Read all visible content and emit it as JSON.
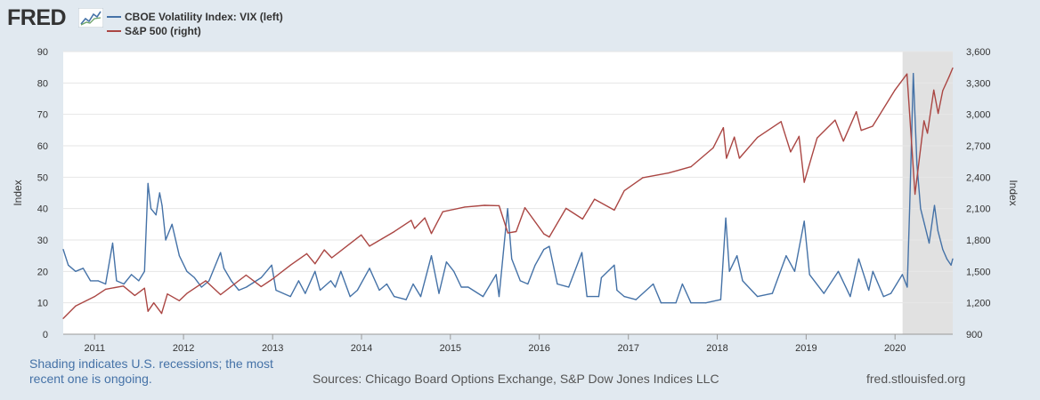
{
  "header": {
    "logo_text": "FRED"
  },
  "footer": {
    "shading_note_line1": "Shading indicates U.S. recessions; the most",
    "shading_note_line2": "recent one is ongoing.",
    "sources": "Sources: Chicago Board Options Exchange, S&P Dow Jones Indices LLC",
    "site": "fred.stlouisfed.org"
  },
  "chart_data": {
    "type": "line",
    "ylabel": "Index",
    "y2label": "Index",
    "ylim": [
      0,
      90
    ],
    "y2lim": [
      900,
      3600
    ],
    "yticks": [
      0,
      10,
      20,
      30,
      40,
      50,
      60,
      70,
      80,
      90
    ],
    "y2ticks": [
      "900",
      "1,200",
      "1,500",
      "1,800",
      "2,100",
      "2,400",
      "2,700",
      "3,000",
      "3,300",
      "3,600"
    ],
    "y2tick_values": [
      900,
      1200,
      1500,
      1800,
      2100,
      2400,
      2700,
      3000,
      3300,
      3600
    ],
    "xlim": [
      "2010-08-25",
      "2020-08-25"
    ],
    "xticks": [
      "2011",
      "2012",
      "2013",
      "2014",
      "2015",
      "2016",
      "2017",
      "2018",
      "2019",
      "2020"
    ],
    "recession": {
      "start": "2020-02-01",
      "end": "2020-08-25"
    },
    "grid": true,
    "series": [
      {
        "name": "CBOE Volatility Index: VIX (left)",
        "axis": "left",
        "color": "#4572a7",
        "points": [
          [
            "2010-08-25",
            27
          ],
          [
            "2010-09-15",
            22
          ],
          [
            "2010-10-15",
            20
          ],
          [
            "2010-11-15",
            21
          ],
          [
            "2010-12-15",
            17
          ],
          [
            "2011-01-15",
            17
          ],
          [
            "2011-02-15",
            16
          ],
          [
            "2011-03-16",
            29
          ],
          [
            "2011-04-01",
            17
          ],
          [
            "2011-05-01",
            16
          ],
          [
            "2011-06-01",
            19
          ],
          [
            "2011-07-01",
            17
          ],
          [
            "2011-07-25",
            20
          ],
          [
            "2011-08-08",
            48
          ],
          [
            "2011-08-20",
            40
          ],
          [
            "2011-09-10",
            38
          ],
          [
            "2011-09-25",
            45
          ],
          [
            "2011-10-05",
            41
          ],
          [
            "2011-10-20",
            30
          ],
          [
            "2011-11-15",
            35
          ],
          [
            "2011-12-15",
            25
          ],
          [
            "2012-01-15",
            20
          ],
          [
            "2012-02-15",
            18
          ],
          [
            "2012-03-15",
            15
          ],
          [
            "2012-04-15",
            17
          ],
          [
            "2012-06-01",
            26
          ],
          [
            "2012-06-15",
            21
          ],
          [
            "2012-07-15",
            17
          ],
          [
            "2012-08-15",
            14
          ],
          [
            "2012-09-15",
            15
          ],
          [
            "2012-11-15",
            18
          ],
          [
            "2012-12-28",
            22
          ],
          [
            "2013-01-15",
            14
          ],
          [
            "2013-03-15",
            12
          ],
          [
            "2013-04-18",
            17
          ],
          [
            "2013-05-15",
            13
          ],
          [
            "2013-06-24",
            20
          ],
          [
            "2013-07-15",
            14
          ],
          [
            "2013-08-28",
            17
          ],
          [
            "2013-09-15",
            15
          ],
          [
            "2013-10-08",
            20
          ],
          [
            "2013-11-15",
            12
          ],
          [
            "2013-12-15",
            14
          ],
          [
            "2014-02-03",
            21
          ],
          [
            "2014-03-15",
            14
          ],
          [
            "2014-04-15",
            16
          ],
          [
            "2014-05-15",
            12
          ],
          [
            "2014-07-03",
            11
          ],
          [
            "2014-08-01",
            16
          ],
          [
            "2014-09-01",
            12
          ],
          [
            "2014-10-15",
            25
          ],
          [
            "2014-11-15",
            13
          ],
          [
            "2014-12-16",
            23
          ],
          [
            "2015-01-15",
            20
          ],
          [
            "2015-02-15",
            15
          ],
          [
            "2015-03-15",
            15
          ],
          [
            "2015-05-15",
            12
          ],
          [
            "2015-07-08",
            19
          ],
          [
            "2015-07-20",
            12
          ],
          [
            "2015-08-24",
            40
          ],
          [
            "2015-09-10",
            24
          ],
          [
            "2015-10-15",
            17
          ],
          [
            "2015-11-15",
            16
          ],
          [
            "2015-12-15",
            22
          ],
          [
            "2016-01-20",
            27
          ],
          [
            "2016-02-11",
            28
          ],
          [
            "2016-03-15",
            16
          ],
          [
            "2016-05-01",
            15
          ],
          [
            "2016-06-24",
            26
          ],
          [
            "2016-07-15",
            12
          ],
          [
            "2016-09-01",
            12
          ],
          [
            "2016-09-12",
            18
          ],
          [
            "2016-11-04",
            22
          ],
          [
            "2016-11-15",
            14
          ],
          [
            "2016-12-15",
            12
          ],
          [
            "2017-02-01",
            11
          ],
          [
            "2017-04-13",
            16
          ],
          [
            "2017-05-15",
            10
          ],
          [
            "2017-07-15",
            10
          ],
          [
            "2017-08-11",
            16
          ],
          [
            "2017-09-15",
            10
          ],
          [
            "2017-11-15",
            10
          ],
          [
            "2018-01-15",
            11
          ],
          [
            "2018-02-05",
            37
          ],
          [
            "2018-02-20",
            20
          ],
          [
            "2018-03-23",
            25
          ],
          [
            "2018-04-15",
            17
          ],
          [
            "2018-06-15",
            12
          ],
          [
            "2018-08-15",
            13
          ],
          [
            "2018-10-11",
            25
          ],
          [
            "2018-11-15",
            20
          ],
          [
            "2018-12-24",
            36
          ],
          [
            "2019-01-15",
            19
          ],
          [
            "2019-03-15",
            13
          ],
          [
            "2019-05-13",
            20
          ],
          [
            "2019-07-01",
            12
          ],
          [
            "2019-08-05",
            24
          ],
          [
            "2019-09-15",
            14
          ],
          [
            "2019-10-02",
            20
          ],
          [
            "2019-11-15",
            12
          ],
          [
            "2019-12-15",
            13
          ],
          [
            "2020-01-31",
            19
          ],
          [
            "2020-02-20",
            15
          ],
          [
            "2020-03-01",
            40
          ],
          [
            "2020-03-16",
            83
          ],
          [
            "2020-03-31",
            54
          ],
          [
            "2020-04-15",
            40
          ],
          [
            "2020-05-01",
            35
          ],
          [
            "2020-05-20",
            29
          ],
          [
            "2020-06-11",
            41
          ],
          [
            "2020-06-25",
            33
          ],
          [
            "2020-07-15",
            27
          ],
          [
            "2020-08-01",
            24
          ],
          [
            "2020-08-18",
            22
          ],
          [
            "2020-08-25",
            24
          ]
        ]
      },
      {
        "name": "S&P 500 (right)",
        "axis": "right",
        "color": "#aa4643",
        "points": [
          [
            "2010-08-25",
            1050
          ],
          [
            "2010-10-15",
            1170
          ],
          [
            "2010-12-31",
            1258
          ],
          [
            "2011-02-15",
            1330
          ],
          [
            "2011-04-29",
            1360
          ],
          [
            "2011-06-15",
            1270
          ],
          [
            "2011-07-25",
            1340
          ],
          [
            "2011-08-08",
            1119
          ],
          [
            "2011-09-01",
            1200
          ],
          [
            "2011-10-03",
            1099
          ],
          [
            "2011-10-27",
            1285
          ],
          [
            "2011-12-15",
            1220
          ],
          [
            "2012-01-15",
            1290
          ],
          [
            "2012-04-01",
            1410
          ],
          [
            "2012-06-01",
            1278
          ],
          [
            "2012-09-14",
            1465
          ],
          [
            "2012-11-15",
            1355
          ],
          [
            "2012-12-31",
            1426
          ],
          [
            "2013-03-15",
            1560
          ],
          [
            "2013-05-21",
            1669
          ],
          [
            "2013-06-24",
            1573
          ],
          [
            "2013-08-01",
            1706
          ],
          [
            "2013-09-01",
            1630
          ],
          [
            "2013-12-31",
            1848
          ],
          [
            "2014-02-03",
            1741
          ],
          [
            "2014-05-15",
            1880
          ],
          [
            "2014-07-24",
            1988
          ],
          [
            "2014-08-07",
            1910
          ],
          [
            "2014-09-18",
            2011
          ],
          [
            "2014-10-15",
            1862
          ],
          [
            "2014-12-01",
            2070
          ],
          [
            "2015-03-01",
            2115
          ],
          [
            "2015-05-21",
            2131
          ],
          [
            "2015-07-20",
            2128
          ],
          [
            "2015-08-25",
            1867
          ],
          [
            "2015-09-28",
            1881
          ],
          [
            "2015-11-03",
            2109
          ],
          [
            "2016-01-20",
            1859
          ],
          [
            "2016-02-11",
            1829
          ],
          [
            "2016-04-20",
            2102
          ],
          [
            "2016-06-27",
            2000
          ],
          [
            "2016-08-15",
            2190
          ],
          [
            "2016-11-04",
            2085
          ],
          [
            "2016-12-15",
            2270
          ],
          [
            "2017-03-01",
            2395
          ],
          [
            "2017-06-15",
            2440
          ],
          [
            "2017-09-15",
            2500
          ],
          [
            "2017-12-15",
            2680
          ],
          [
            "2018-01-26",
            2873
          ],
          [
            "2018-02-08",
            2581
          ],
          [
            "2018-03-12",
            2783
          ],
          [
            "2018-04-02",
            2581
          ],
          [
            "2018-06-15",
            2780
          ],
          [
            "2018-09-20",
            2931
          ],
          [
            "2018-10-29",
            2641
          ],
          [
            "2018-12-03",
            2790
          ],
          [
            "2018-12-24",
            2351
          ],
          [
            "2019-02-15",
            2775
          ],
          [
            "2019-04-30",
            2945
          ],
          [
            "2019-06-03",
            2744
          ],
          [
            "2019-07-26",
            3025
          ],
          [
            "2019-08-15",
            2847
          ],
          [
            "2019-10-01",
            2887
          ],
          [
            "2019-12-31",
            3230
          ],
          [
            "2020-02-19",
            3386
          ],
          [
            "2020-03-23",
            2237
          ],
          [
            "2020-04-29",
            2939
          ],
          [
            "2020-05-13",
            2820
          ],
          [
            "2020-06-08",
            3232
          ],
          [
            "2020-06-26",
            3009
          ],
          [
            "2020-07-15",
            3226
          ],
          [
            "2020-08-10",
            3360
          ],
          [
            "2020-08-25",
            3443
          ]
        ]
      }
    ]
  }
}
